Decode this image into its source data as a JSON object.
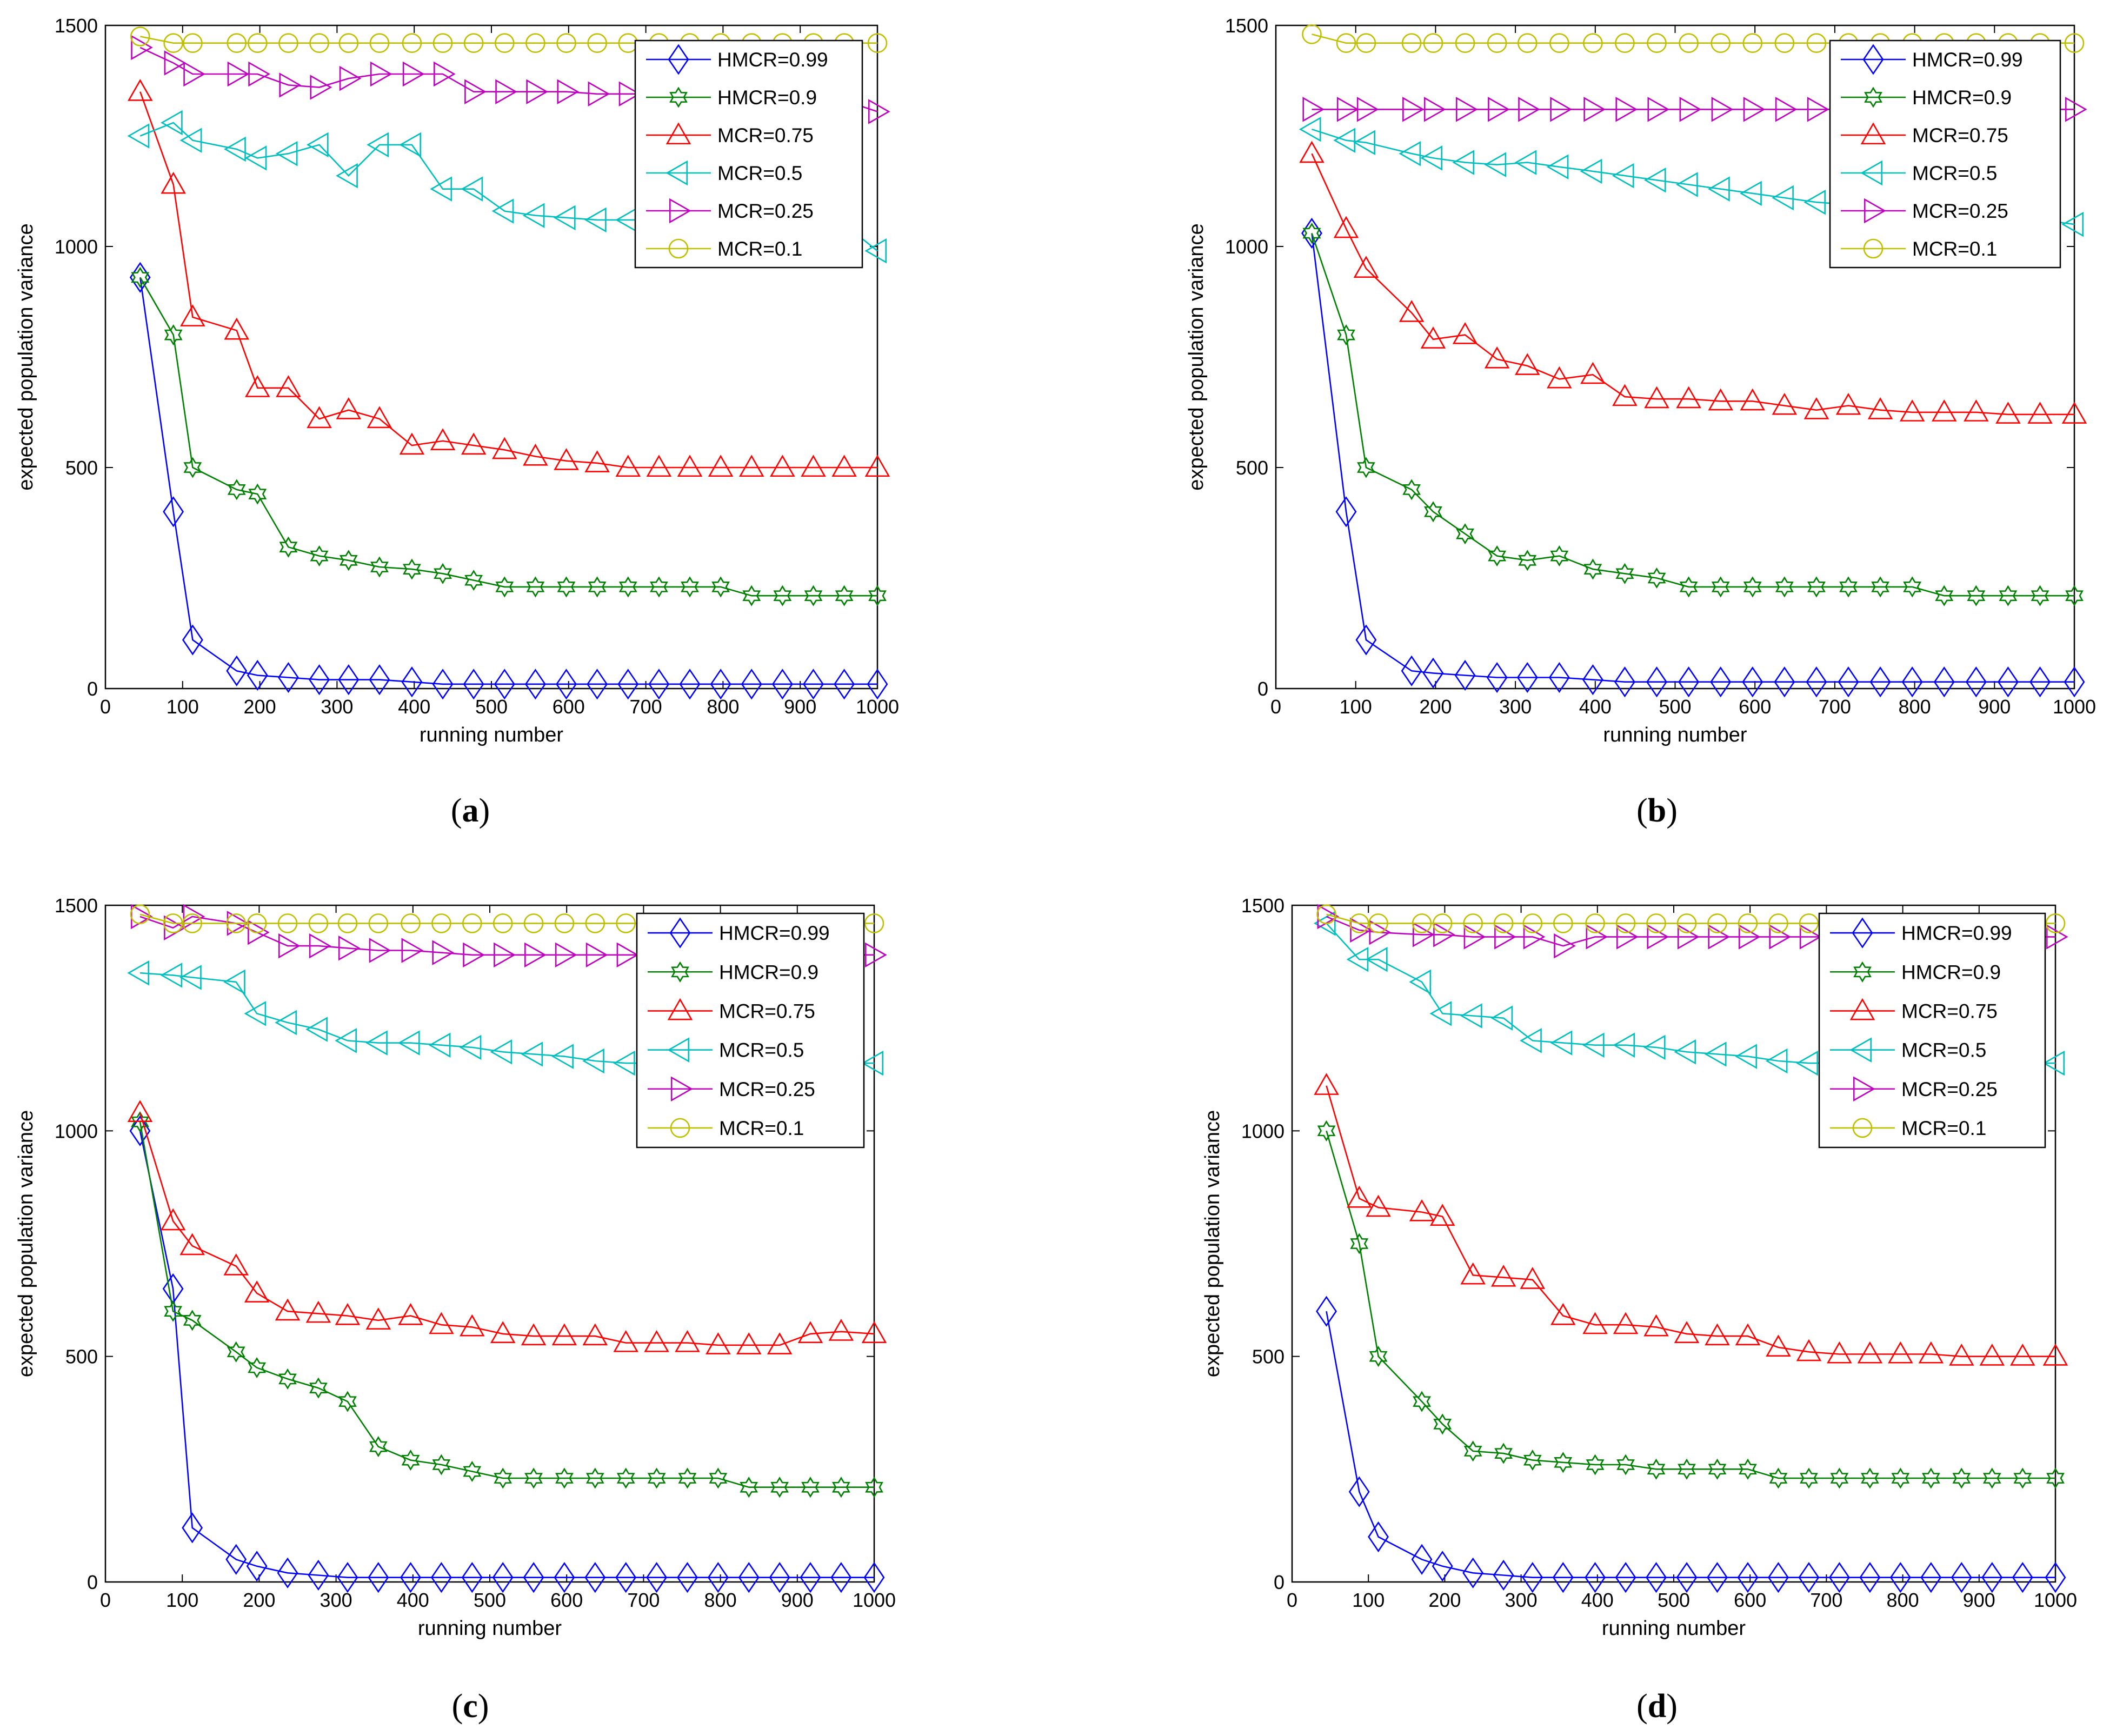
{
  "figure": {
    "captions": [
      "a",
      "b",
      "c",
      "d"
    ]
  },
  "legend_order": [
    "HMCR=0.99",
    "HMCR=0.9",
    "MCR=0.75",
    "MCR=0.5",
    "MCR=0.25",
    "MCR=0.1"
  ],
  "series_styles": [
    {
      "name": "HMCR=0.99",
      "color": "#0000ff",
      "marker": "diamond-icon"
    },
    {
      "name": "HMCR=0.9",
      "color": "#008000",
      "marker": "hexagram-icon"
    },
    {
      "name": "MCR=0.75",
      "color": "#ff0000",
      "marker": "triangle-up-icon"
    },
    {
      "name": "MCR=0.5",
      "color": "#00bfbf",
      "marker": "triangle-left-icon"
    },
    {
      "name": "MCR=0.25",
      "color": "#bf00bf",
      "marker": "triangle-right-icon"
    },
    {
      "name": "MCR=0.1",
      "color": "#bfbf00",
      "marker": "circle-icon"
    }
  ],
  "chart_data": [
    {
      "panel": "a",
      "type": "line",
      "xlabel": "running number",
      "ylabel": "expected population variance",
      "xlim": [
        0,
        1000
      ],
      "ylim": [
        0,
        1500
      ],
      "xticks": [
        0,
        100,
        200,
        300,
        400,
        500,
        600,
        700,
        800,
        900,
        1000
      ],
      "yticks": [
        0,
        500,
        1000,
        1500
      ],
      "legend_position": "top-right",
      "x": [
        45,
        88,
        113,
        170,
        197,
        237,
        277,
        315,
        355,
        397,
        437,
        477,
        517,
        557,
        597,
        637,
        677,
        717,
        757,
        797,
        837,
        877,
        917,
        957,
        1000
      ],
      "series": [
        {
          "name": "HMCR=0.99",
          "values": [
            930,
            400,
            110,
            40,
            30,
            25,
            20,
            20,
            20,
            15,
            10,
            10,
            10,
            10,
            10,
            10,
            10,
            10,
            10,
            10,
            10,
            10,
            10,
            10,
            10
          ]
        },
        {
          "name": "HMCR=0.9",
          "values": [
            930,
            800,
            500,
            450,
            440,
            320,
            300,
            290,
            275,
            270,
            260,
            245,
            230,
            230,
            230,
            230,
            230,
            230,
            230,
            230,
            210,
            210,
            210,
            210,
            210
          ]
        },
        {
          "name": "MCR=0.75",
          "values": [
            1350,
            1140,
            840,
            810,
            680,
            680,
            610,
            630,
            610,
            550,
            560,
            550,
            540,
            525,
            515,
            510,
            500,
            500,
            500,
            500,
            500,
            500,
            500,
            500,
            500
          ]
        },
        {
          "name": "MCR=0.5",
          "values": [
            1250,
            1280,
            1240,
            1220,
            1200,
            1210,
            1230,
            1160,
            1230,
            1230,
            1130,
            1130,
            1080,
            1070,
            1065,
            1060,
            1060,
            1060,
            1060,
            1060,
            1055,
            1055,
            1050,
            1050,
            990
          ]
        },
        {
          "name": "MCR=0.25",
          "values": [
            1450,
            1415,
            1390,
            1390,
            1390,
            1365,
            1360,
            1380,
            1390,
            1390,
            1390,
            1350,
            1350,
            1350,
            1350,
            1345,
            1345,
            1345,
            1345,
            1345,
            1340,
            1340,
            1335,
            1330,
            1305
          ]
        },
        {
          "name": "MCR=0.1",
          "values": [
            1475,
            1460,
            1460,
            1460,
            1460,
            1460,
            1460,
            1460,
            1460,
            1460,
            1460,
            1460,
            1460,
            1460,
            1460,
            1460,
            1460,
            1460,
            1460,
            1460,
            1460,
            1460,
            1460,
            1460,
            1460
          ]
        }
      ]
    },
    {
      "panel": "b",
      "type": "line",
      "xlabel": "running number",
      "ylabel": "expected population variance",
      "xlim": [
        0,
        1000
      ],
      "ylim": [
        0,
        1500
      ],
      "xticks": [
        0,
        100,
        200,
        300,
        400,
        500,
        600,
        700,
        800,
        900,
        1000
      ],
      "yticks": [
        0,
        500,
        1000,
        1500
      ],
      "legend_position": "top-right",
      "x": [
        45,
        88,
        113,
        170,
        197,
        237,
        277,
        315,
        355,
        397,
        437,
        477,
        517,
        557,
        597,
        637,
        677,
        717,
        757,
        797,
        837,
        877,
        917,
        957,
        1000
      ],
      "series": [
        {
          "name": "HMCR=0.99",
          "values": [
            1030,
            400,
            110,
            40,
            35,
            30,
            25,
            25,
            25,
            20,
            15,
            15,
            15,
            15,
            15,
            15,
            15,
            15,
            15,
            15,
            15,
            15,
            15,
            15,
            15
          ]
        },
        {
          "name": "HMCR=0.9",
          "values": [
            1030,
            800,
            500,
            450,
            400,
            350,
            300,
            290,
            300,
            270,
            260,
            250,
            230,
            230,
            230,
            230,
            230,
            230,
            230,
            230,
            210,
            210,
            210,
            210,
            210
          ]
        },
        {
          "name": "MCR=0.75",
          "values": [
            1210,
            1040,
            950,
            850,
            790,
            800,
            745,
            730,
            700,
            710,
            660,
            655,
            655,
            650,
            650,
            640,
            630,
            640,
            630,
            625,
            625,
            625,
            620,
            620,
            620
          ]
        },
        {
          "name": "MCR=0.5",
          "values": [
            1265,
            1240,
            1235,
            1210,
            1200,
            1190,
            1185,
            1190,
            1180,
            1170,
            1160,
            1150,
            1140,
            1130,
            1120,
            1110,
            1100,
            1095,
            1090,
            1080,
            1075,
            1070,
            1065,
            1060,
            1050
          ]
        },
        {
          "name": "MCR=0.25",
          "values": [
            1310,
            1310,
            1310,
            1310,
            1310,
            1310,
            1310,
            1310,
            1310,
            1310,
            1310,
            1310,
            1310,
            1310,
            1310,
            1310,
            1310,
            1310,
            1310,
            1310,
            1310,
            1310,
            1310,
            1310,
            1310
          ]
        },
        {
          "name": "MCR=0.1",
          "values": [
            1480,
            1460,
            1460,
            1460,
            1460,
            1460,
            1460,
            1460,
            1460,
            1460,
            1460,
            1460,
            1460,
            1460,
            1460,
            1460,
            1460,
            1460,
            1460,
            1460,
            1460,
            1460,
            1460,
            1460,
            1460
          ]
        }
      ]
    },
    {
      "panel": "c",
      "type": "line",
      "xlabel": "running number",
      "ylabel": "expected population variance",
      "xlim": [
        0,
        1000
      ],
      "ylim": [
        0,
        1500
      ],
      "xticks": [
        0,
        100,
        200,
        300,
        400,
        500,
        600,
        700,
        800,
        900,
        1000
      ],
      "yticks": [
        0,
        500,
        1000,
        1500
      ],
      "legend_position": "top-right",
      "x": [
        45,
        88,
        113,
        170,
        197,
        237,
        277,
        315,
        355,
        397,
        437,
        477,
        517,
        557,
        597,
        637,
        677,
        717,
        757,
        797,
        837,
        877,
        917,
        957,
        1000
      ],
      "series": [
        {
          "name": "HMCR=0.99",
          "values": [
            1000,
            650,
            120,
            50,
            35,
            20,
            15,
            10,
            10,
            10,
            10,
            10,
            10,
            10,
            10,
            10,
            10,
            10,
            10,
            10,
            10,
            10,
            10,
            10,
            10
          ]
        },
        {
          "name": "HMCR=0.9",
          "values": [
            1020,
            600,
            580,
            510,
            475,
            450,
            430,
            400,
            300,
            270,
            260,
            245,
            230,
            230,
            230,
            230,
            230,
            230,
            230,
            230,
            210,
            210,
            210,
            210,
            210
          ]
        },
        {
          "name": "MCR=0.75",
          "values": [
            1040,
            800,
            745,
            700,
            640,
            600,
            595,
            590,
            580,
            590,
            570,
            565,
            550,
            545,
            545,
            545,
            530,
            530,
            530,
            525,
            525,
            525,
            550,
            555,
            550
          ]
        },
        {
          "name": "MCR=0.5",
          "values": [
            1350,
            1345,
            1340,
            1330,
            1260,
            1240,
            1225,
            1200,
            1195,
            1195,
            1190,
            1185,
            1175,
            1170,
            1165,
            1155,
            1150,
            1150,
            1150,
            1150,
            1150,
            1150,
            1150,
            1150,
            1150
          ]
        },
        {
          "name": "MCR=0.25",
          "values": [
            1475,
            1450,
            1475,
            1460,
            1440,
            1410,
            1410,
            1405,
            1400,
            1400,
            1395,
            1390,
            1390,
            1390,
            1390,
            1390,
            1390,
            1390,
            1390,
            1390,
            1390,
            1390,
            1390,
            1390,
            1390
          ]
        },
        {
          "name": "MCR=0.1",
          "values": [
            1480,
            1460,
            1460,
            1460,
            1460,
            1460,
            1460,
            1460,
            1460,
            1460,
            1460,
            1460,
            1460,
            1460,
            1460,
            1460,
            1460,
            1460,
            1460,
            1460,
            1460,
            1460,
            1460,
            1460,
            1460
          ]
        }
      ]
    },
    {
      "panel": "d",
      "type": "line",
      "xlabel": "running number",
      "ylabel": "expected population variance",
      "xlim": [
        0,
        1000
      ],
      "ylim": [
        0,
        1500
      ],
      "xticks": [
        0,
        100,
        200,
        300,
        400,
        500,
        600,
        700,
        800,
        900,
        1000
      ],
      "yticks": [
        0,
        500,
        1000,
        1500
      ],
      "legend_position": "top-right",
      "x": [
        45,
        88,
        113,
        170,
        197,
        237,
        277,
        315,
        355,
        397,
        437,
        477,
        517,
        557,
        597,
        637,
        677,
        717,
        757,
        797,
        837,
        877,
        917,
        957,
        1000
      ],
      "series": [
        {
          "name": "HMCR=0.99",
          "values": [
            600,
            200,
            100,
            50,
            35,
            20,
            15,
            10,
            10,
            10,
            10,
            10,
            10,
            10,
            10,
            10,
            10,
            10,
            10,
            10,
            10,
            10,
            10,
            10,
            10
          ]
        },
        {
          "name": "HMCR=0.9",
          "values": [
            1000,
            750,
            500,
            400,
            350,
            290,
            285,
            270,
            265,
            260,
            260,
            250,
            250,
            250,
            250,
            230,
            230,
            230,
            230,
            230,
            230,
            230,
            230,
            230,
            230
          ]
        },
        {
          "name": "MCR=0.75",
          "values": [
            1100,
            850,
            830,
            820,
            810,
            680,
            675,
            670,
            590,
            570,
            570,
            565,
            550,
            545,
            545,
            520,
            510,
            505,
            505,
            505,
            505,
            500,
            500,
            500,
            500
          ]
        },
        {
          "name": "MCR=0.5",
          "values": [
            1460,
            1380,
            1380,
            1330,
            1260,
            1255,
            1250,
            1200,
            1195,
            1190,
            1190,
            1185,
            1175,
            1170,
            1165,
            1155,
            1150,
            1150,
            1150,
            1150,
            1150,
            1150,
            1150,
            1150,
            1150
          ]
        },
        {
          "name": "MCR=0.25",
          "values": [
            1475,
            1445,
            1440,
            1435,
            1435,
            1430,
            1430,
            1430,
            1410,
            1430,
            1430,
            1430,
            1430,
            1430,
            1430,
            1430,
            1430,
            1430,
            1430,
            1430,
            1430,
            1430,
            1430,
            1430,
            1430
          ]
        },
        {
          "name": "MCR=0.1",
          "values": [
            1480,
            1460,
            1460,
            1460,
            1460,
            1460,
            1460,
            1460,
            1460,
            1460,
            1460,
            1460,
            1460,
            1460,
            1460,
            1460,
            1460,
            1460,
            1460,
            1460,
            1460,
            1460,
            1460,
            1460,
            1460
          ]
        }
      ]
    }
  ]
}
